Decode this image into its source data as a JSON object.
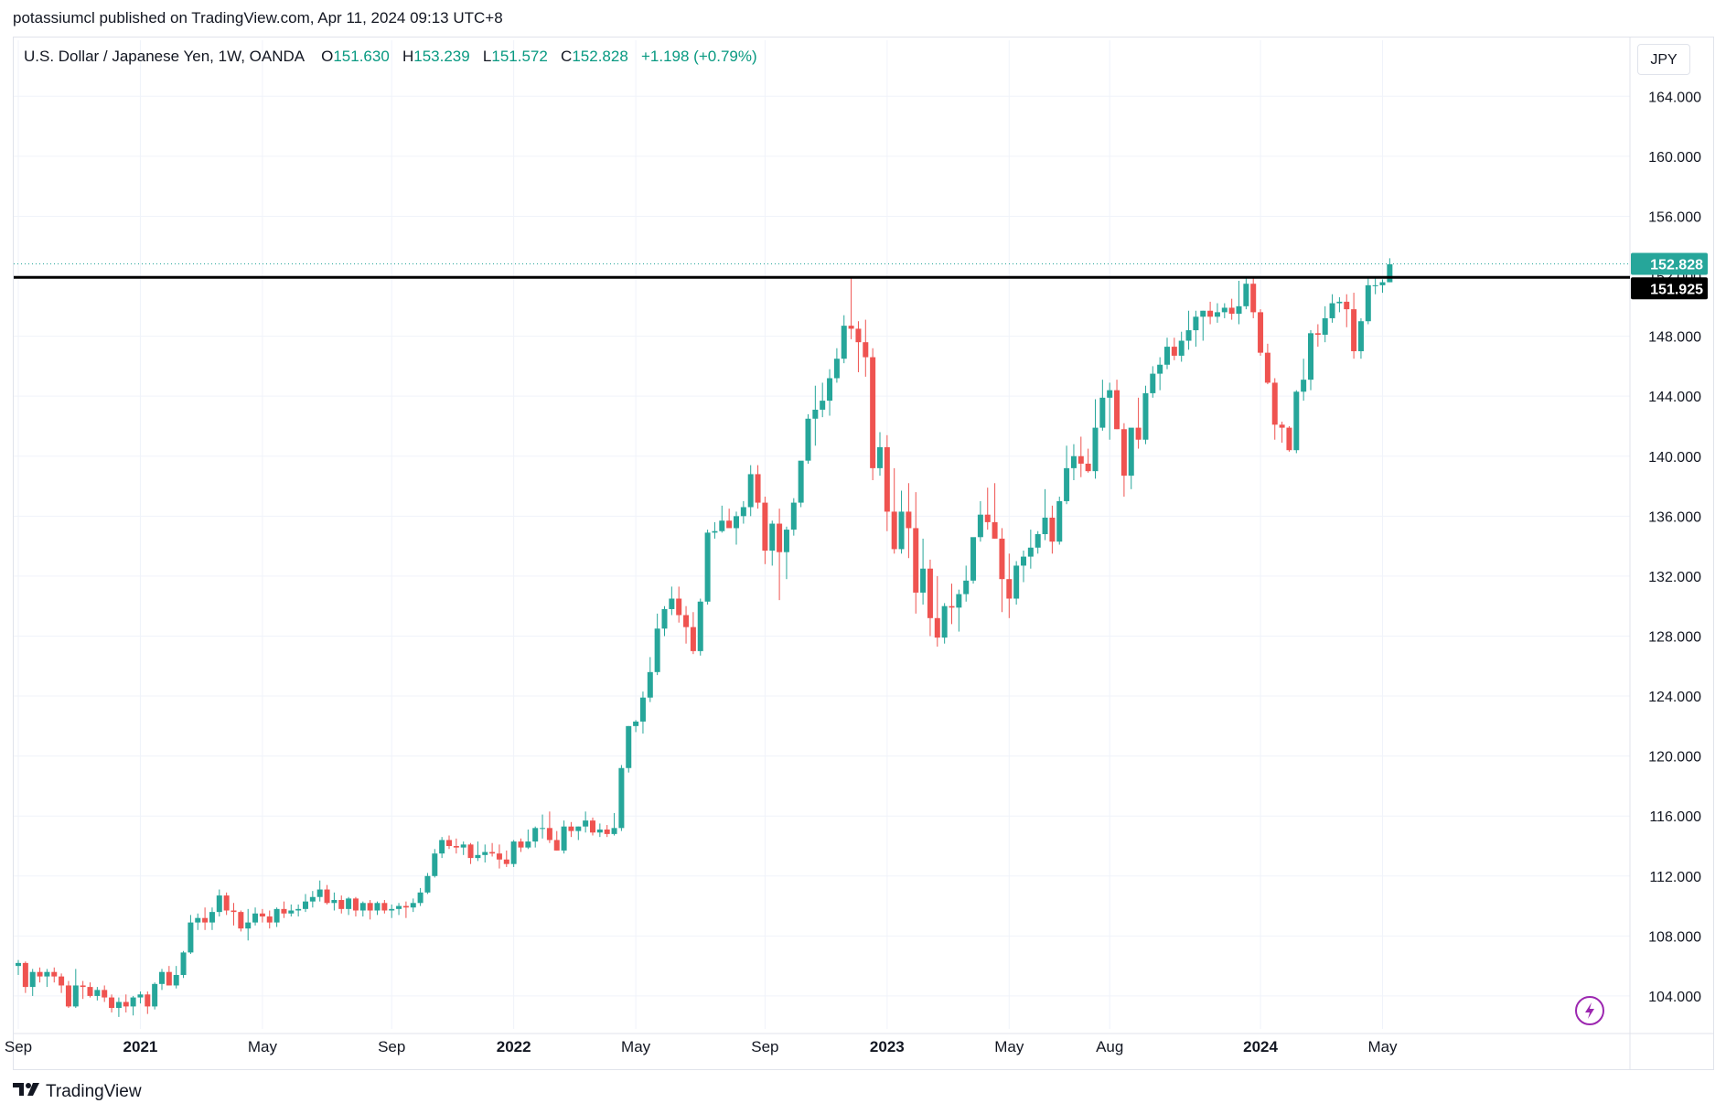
{
  "published": "potassiumcl published on TradingView.com, Apr 11, 2024 09:13 UTC+8",
  "legend": {
    "symbol": "U.S. Dollar / Japanese Yen, 1W, OANDA",
    "o_label": "O",
    "o_value": "151.630",
    "h_label": "H",
    "h_value": "153.239",
    "l_label": "L",
    "l_value": "151.572",
    "c_label": "C",
    "c_value": "152.828",
    "change": "+1.198 (+0.79%)"
  },
  "currency_button": "JPY",
  "brand": "TradingView",
  "colors": {
    "up": "#26a69a",
    "down": "#ef5350",
    "line": "#000000",
    "grid": "#f0f3fa",
    "price_tag": "#26a69a"
  },
  "icons": [
    "tradingview-logo-icon",
    "lightning-icon"
  ],
  "price_tags": {
    "last": "152.828",
    "line": "151.925"
  },
  "chart_data": {
    "type": "candlestick",
    "timeframe": "1W",
    "ylim": [
      101.8,
      165.3
    ],
    "y_ticks": [
      "164.000",
      "160.000",
      "156.000",
      "152.000",
      "148.000",
      "144.000",
      "140.000",
      "136.000",
      "132.000",
      "128.000",
      "124.000",
      "120.000",
      "116.000",
      "112.000",
      "108.000",
      "104.000"
    ],
    "x_ticks": [
      {
        "label": "Sep",
        "week": 0,
        "bold": false
      },
      {
        "label": "2021",
        "week": 17,
        "bold": true
      },
      {
        "label": "May",
        "week": 34,
        "bold": false
      },
      {
        "label": "Sep",
        "week": 52,
        "bold": false
      },
      {
        "label": "2022",
        "week": 69,
        "bold": true
      },
      {
        "label": "May",
        "week": 86,
        "bold": false
      },
      {
        "label": "Sep",
        "week": 104,
        "bold": false
      },
      {
        "label": "2023",
        "week": 121,
        "bold": true
      },
      {
        "label": "May",
        "week": 138,
        "bold": false
      },
      {
        "label": "Aug",
        "week": 152,
        "bold": false
      },
      {
        "label": "2024",
        "week": 173,
        "bold": true
      },
      {
        "label": "May",
        "week": 190,
        "bold": false
      }
    ],
    "horizontal_line": 151.925,
    "last_close": 152.828,
    "candles_ohlc": [
      [
        106.0,
        106.4,
        105.4,
        106.2
      ],
      [
        106.2,
        106.3,
        104.2,
        104.6
      ],
      [
        104.6,
        105.8,
        104.0,
        105.6
      ],
      [
        105.6,
        105.9,
        104.9,
        105.3
      ],
      [
        105.3,
        105.8,
        104.6,
        105.6
      ],
      [
        105.6,
        105.9,
        104.9,
        105.3
      ],
      [
        105.3,
        105.5,
        104.2,
        104.7
      ],
      [
        104.7,
        105.0,
        103.2,
        103.3
      ],
      [
        103.3,
        105.8,
        103.2,
        104.7
      ],
      [
        104.7,
        105.0,
        103.8,
        104.6
      ],
      [
        104.6,
        104.9,
        103.9,
        104.0
      ],
      [
        104.0,
        104.6,
        103.7,
        104.4
      ],
      [
        104.4,
        104.7,
        103.6,
        103.9
      ],
      [
        103.9,
        104.1,
        102.9,
        103.2
      ],
      [
        103.2,
        103.9,
        102.6,
        103.6
      ],
      [
        103.6,
        104.1,
        102.9,
        103.3
      ],
      [
        103.3,
        104.0,
        102.7,
        103.9
      ],
      [
        103.9,
        104.3,
        103.5,
        104.1
      ],
      [
        104.1,
        104.3,
        102.8,
        103.3
      ],
      [
        103.3,
        104.9,
        103.1,
        104.8
      ],
      [
        104.8,
        105.8,
        104.4,
        105.6
      ],
      [
        105.6,
        106.0,
        104.7,
        104.7
      ],
      [
        104.7,
        106.0,
        104.5,
        105.4
      ],
      [
        105.4,
        107.0,
        105.2,
        106.9
      ],
      [
        106.9,
        109.4,
        106.8,
        108.9
      ],
      [
        108.9,
        109.5,
        108.4,
        109.2
      ],
      [
        109.2,
        109.9,
        108.4,
        108.9
      ],
      [
        108.9,
        109.9,
        108.4,
        109.6
      ],
      [
        109.6,
        111.1,
        109.3,
        110.7
      ],
      [
        110.7,
        110.9,
        109.4,
        109.7
      ],
      [
        109.7,
        110.2,
        108.7,
        109.6
      ],
      [
        109.6,
        109.7,
        108.3,
        108.5
      ],
      [
        108.5,
        109.8,
        107.7,
        108.9
      ],
      [
        108.9,
        109.9,
        108.7,
        109.5
      ],
      [
        109.5,
        109.8,
        108.9,
        109.3
      ],
      [
        109.3,
        109.7,
        108.5,
        108.9
      ],
      [
        108.9,
        109.9,
        108.6,
        109.8
      ],
      [
        109.8,
        110.3,
        109.2,
        109.5
      ],
      [
        109.5,
        110.1,
        109.3,
        109.7
      ],
      [
        109.7,
        110.1,
        109.3,
        109.8
      ],
      [
        109.8,
        110.8,
        109.6,
        110.3
      ],
      [
        110.3,
        111.0,
        109.9,
        110.6
      ],
      [
        110.6,
        111.7,
        110.3,
        111.1
      ],
      [
        111.1,
        111.4,
        110.1,
        110.2
      ],
      [
        110.2,
        110.9,
        109.7,
        110.4
      ],
      [
        110.4,
        110.7,
        109.5,
        109.8
      ],
      [
        109.8,
        110.6,
        109.4,
        110.5
      ],
      [
        110.5,
        110.6,
        109.3,
        109.7
      ],
      [
        109.7,
        110.3,
        109.3,
        110.2
      ],
      [
        110.2,
        110.4,
        109.1,
        109.7
      ],
      [
        109.7,
        110.3,
        109.4,
        110.2
      ],
      [
        110.2,
        110.4,
        109.5,
        109.7
      ],
      [
        109.7,
        110.1,
        109.2,
        109.8
      ],
      [
        109.8,
        110.2,
        109.4,
        110.0
      ],
      [
        110.0,
        110.3,
        109.2,
        109.9
      ],
      [
        109.9,
        110.5,
        109.6,
        110.2
      ],
      [
        110.2,
        111.2,
        110.0,
        110.9
      ],
      [
        110.9,
        112.2,
        110.8,
        112.0
      ],
      [
        112.0,
        113.8,
        111.9,
        113.5
      ],
      [
        113.5,
        114.6,
        113.2,
        114.4
      ],
      [
        114.4,
        114.7,
        113.8,
        114.0
      ],
      [
        114.0,
        114.5,
        113.5,
        113.9
      ],
      [
        113.9,
        114.3,
        113.4,
        114.1
      ],
      [
        114.1,
        114.2,
        112.8,
        113.2
      ],
      [
        113.2,
        114.3,
        113.0,
        113.4
      ],
      [
        113.4,
        114.1,
        112.9,
        113.6
      ],
      [
        113.6,
        114.2,
        113.3,
        113.5
      ],
      [
        113.5,
        114.1,
        112.5,
        113.1
      ],
      [
        113.1,
        113.7,
        112.6,
        112.8
      ],
      [
        112.8,
        114.4,
        112.6,
        114.3
      ],
      [
        114.3,
        114.5,
        113.6,
        113.9
      ],
      [
        113.9,
        115.1,
        113.8,
        114.3
      ],
      [
        114.3,
        115.3,
        113.9,
        115.2
      ],
      [
        115.2,
        116.1,
        114.5,
        115.2
      ],
      [
        115.2,
        116.3,
        114.2,
        114.4
      ],
      [
        114.4,
        115.0,
        113.7,
        113.7
      ],
      [
        113.7,
        115.7,
        113.5,
        115.3
      ],
      [
        115.3,
        115.6,
        114.6,
        115.0
      ],
      [
        115.0,
        115.3,
        114.4,
        115.3
      ],
      [
        115.3,
        116.3,
        114.9,
        115.7
      ],
      [
        115.7,
        115.9,
        114.7,
        114.9
      ],
      [
        114.9,
        115.5,
        114.6,
        115.1
      ],
      [
        115.1,
        115.4,
        114.6,
        114.8
      ],
      [
        114.8,
        116.2,
        114.7,
        115.2
      ],
      [
        115.2,
        119.4,
        115.0,
        119.2
      ],
      [
        119.2,
        122.0,
        118.9,
        122.0
      ],
      [
        122.0,
        122.4,
        121.6,
        122.3
      ],
      [
        122.3,
        124.3,
        121.5,
        123.9
      ],
      [
        123.9,
        126.6,
        123.6,
        125.6
      ],
      [
        125.6,
        129.5,
        125.4,
        128.5
      ],
      [
        128.5,
        130.0,
        128.0,
        129.8
      ],
      [
        129.8,
        131.3,
        129.4,
        130.5
      ],
      [
        130.5,
        131.3,
        128.9,
        129.4
      ],
      [
        129.4,
        130.0,
        127.5,
        128.6
      ],
      [
        128.6,
        129.6,
        126.8,
        127.0
      ],
      [
        127.0,
        130.5,
        126.7,
        130.3
      ],
      [
        130.3,
        135.1,
        130.1,
        134.9
      ],
      [
        134.9,
        135.6,
        134.5,
        135.0
      ],
      [
        135.0,
        136.7,
        134.9,
        135.7
      ],
      [
        135.7,
        136.5,
        135.4,
        135.2
      ],
      [
        135.2,
        136.3,
        134.1,
        136.0
      ],
      [
        136.0,
        137.0,
        135.5,
        136.6
      ],
      [
        136.6,
        139.4,
        136.0,
        138.8
      ],
      [
        138.8,
        139.4,
        136.5,
        136.9
      ],
      [
        136.9,
        137.3,
        132.8,
        133.7
      ],
      [
        133.7,
        135.7,
        132.7,
        135.5
      ],
      [
        135.5,
        136.5,
        130.4,
        133.6
      ],
      [
        133.6,
        135.3,
        131.8,
        135.1
      ],
      [
        135.1,
        137.2,
        134.7,
        136.9
      ],
      [
        136.9,
        139.5,
        136.6,
        139.7
      ],
      [
        139.7,
        142.8,
        139.5,
        142.5
      ],
      [
        142.5,
        144.7,
        140.7,
        143.1
      ],
      [
        143.1,
        144.9,
        142.6,
        143.7
      ],
      [
        143.7,
        145.8,
        142.7,
        145.2
      ],
      [
        145.2,
        147.2,
        144.9,
        146.5
      ],
      [
        146.5,
        149.4,
        146.2,
        148.7
      ],
      [
        148.7,
        151.9,
        147.8,
        148.5
      ],
      [
        148.5,
        149.0,
        145.6,
        147.6
      ],
      [
        147.6,
        149.1,
        145.3,
        146.6
      ],
      [
        146.6,
        147.2,
        138.4,
        139.2
      ],
      [
        139.2,
        141.6,
        138.7,
        140.6
      ],
      [
        140.6,
        141.4,
        135.0,
        136.3
      ],
      [
        136.3,
        139.2,
        133.5,
        133.8
      ],
      [
        133.8,
        137.7,
        133.5,
        136.3
      ],
      [
        136.3,
        138.2,
        133.2,
        135.2
      ],
      [
        135.2,
        137.6,
        129.5,
        130.9
      ],
      [
        130.9,
        134.5,
        130.1,
        132.5
      ],
      [
        132.5,
        133.1,
        128.0,
        129.2
      ],
      [
        129.2,
        132.0,
        127.3,
        127.9
      ],
      [
        127.9,
        130.2,
        127.5,
        130.0
      ],
      [
        130.0,
        131.5,
        128.8,
        129.9
      ],
      [
        129.9,
        131.1,
        128.3,
        130.8
      ],
      [
        130.8,
        132.7,
        130.3,
        131.7
      ],
      [
        131.7,
        134.5,
        131.5,
        134.6
      ],
      [
        134.6,
        137.0,
        134.3,
        136.1
      ],
      [
        136.1,
        137.9,
        135.1,
        135.6
      ],
      [
        135.6,
        138.2,
        134.5,
        134.5
      ],
      [
        134.5,
        135.2,
        129.6,
        131.8
      ],
      [
        131.8,
        133.5,
        129.2,
        130.5
      ],
      [
        130.5,
        133.0,
        130.1,
        132.7
      ],
      [
        132.7,
        133.7,
        131.6,
        133.3
      ],
      [
        133.3,
        135.1,
        132.5,
        133.9
      ],
      [
        133.9,
        135.0,
        133.5,
        134.8
      ],
      [
        134.8,
        137.8,
        134.4,
        135.9
      ],
      [
        135.9,
        136.7,
        133.5,
        134.3
      ],
      [
        134.3,
        137.3,
        134.1,
        137.0
      ],
      [
        137.0,
        140.7,
        136.8,
        139.2
      ],
      [
        139.2,
        140.8,
        138.4,
        140.0
      ],
      [
        140.0,
        141.3,
        138.6,
        139.5
      ],
      [
        139.5,
        140.5,
        138.9,
        139.0
      ],
      [
        139.0,
        143.8,
        138.5,
        141.9
      ],
      [
        141.9,
        145.1,
        141.7,
        143.9
      ],
      [
        143.9,
        144.9,
        141.1,
        144.4
      ],
      [
        144.4,
        145.1,
        141.8,
        141.8
      ],
      [
        141.8,
        142.2,
        137.3,
        138.7
      ],
      [
        138.7,
        141.6,
        137.8,
        141.9
      ],
      [
        141.9,
        143.9,
        140.5,
        141.1
      ],
      [
        141.1,
        144.7,
        140.8,
        144.2
      ],
      [
        144.2,
        146.0,
        143.9,
        145.5
      ],
      [
        145.5,
        146.6,
        144.4,
        146.1
      ],
      [
        146.1,
        147.9,
        145.8,
        147.3
      ],
      [
        147.3,
        147.9,
        146.4,
        146.7
      ],
      [
        146.7,
        148.3,
        146.3,
        147.7
      ],
      [
        147.7,
        149.7,
        147.1,
        148.4
      ],
      [
        148.4,
        149.7,
        147.3,
        149.3
      ],
      [
        149.3,
        149.7,
        147.7,
        149.7
      ],
      [
        149.7,
        150.3,
        148.8,
        149.3
      ],
      [
        149.3,
        150.2,
        148.9,
        149.6
      ],
      [
        149.6,
        150.2,
        149.2,
        149.9
      ],
      [
        149.9,
        150.5,
        149.1,
        149.5
      ],
      [
        149.5,
        151.7,
        148.8,
        150.0
      ],
      [
        150.0,
        151.9,
        149.8,
        151.5
      ],
      [
        151.5,
        151.9,
        149.2,
        149.6
      ],
      [
        149.6,
        149.8,
        146.7,
        146.9
      ],
      [
        146.9,
        147.5,
        144.8,
        144.9
      ],
      [
        144.9,
        145.2,
        141.1,
        142.1
      ],
      [
        142.1,
        142.3,
        140.9,
        141.9
      ],
      [
        141.9,
        142.0,
        140.3,
        140.4
      ],
      [
        140.4,
        144.4,
        140.2,
        144.3
      ],
      [
        144.3,
        146.5,
        143.7,
        145.1
      ],
      [
        145.1,
        148.4,
        144.4,
        148.2
      ],
      [
        148.2,
        148.8,
        147.3,
        148.1
      ],
      [
        148.1,
        150.0,
        147.6,
        149.2
      ],
      [
        149.2,
        150.8,
        148.9,
        150.2
      ],
      [
        150.2,
        150.6,
        149.6,
        150.3
      ],
      [
        150.3,
        150.8,
        148.6,
        149.8
      ],
      [
        149.8,
        150.9,
        146.5,
        147.0
      ],
      [
        147.0,
        149.2,
        146.5,
        149.0
      ],
      [
        149.0,
        151.9,
        148.8,
        151.4
      ],
      [
        151.4,
        151.9,
        150.8,
        151.4
      ],
      [
        151.4,
        151.8,
        150.9,
        151.6
      ],
      [
        151.6,
        153.2,
        151.6,
        152.8
      ]
    ]
  }
}
